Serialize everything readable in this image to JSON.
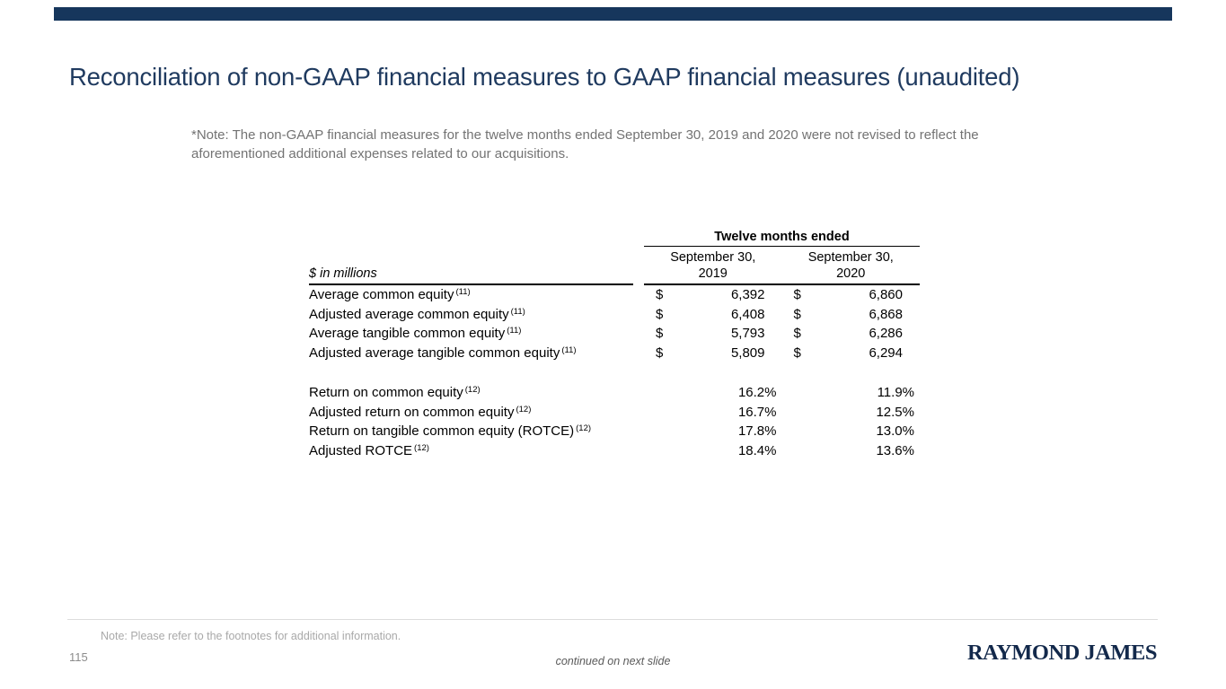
{
  "slide": {
    "title": "Reconciliation of non-GAAP financial measures to GAAP financial measures (unaudited)",
    "note": "*Note: The non-GAAP financial measures for the twelve months ended September 30, 2019 and 2020 were not revised to reflect the aforementioned additional expenses related to our acquisitions.",
    "footnote": "Note: Please refer to the footnotes for additional information.",
    "page_number": "115",
    "continued": "continued on next slide",
    "logo_text": "RAYMOND JAMES"
  },
  "colors": {
    "brand_navy_bar": "#16365C",
    "title_navy": "#1F3A5F",
    "logo_navy": "#13294B",
    "note_gray": "#737373",
    "footnote_gray": "#A9A9A9",
    "divider_gray": "#DDDDDD"
  },
  "table": {
    "units_label": "$ in millions",
    "span_header": "Twelve months ended",
    "col_headers": [
      {
        "line1": "September 30,",
        "line2": "2019"
      },
      {
        "line1": "September 30,",
        "line2": "2020"
      }
    ],
    "rows": [
      {
        "label": "Average common equity",
        "sup": "(11)",
        "currency": "$",
        "y2019": "6,392",
        "y2020": "6,860"
      },
      {
        "label": "Adjusted average common equity",
        "sup": "(11)",
        "currency": "$",
        "y2019": "6,408",
        "y2020": "6,868"
      },
      {
        "label": "Average tangible common equity",
        "sup": "(11)",
        "currency": "$",
        "y2019": "5,793",
        "y2020": "6,286"
      },
      {
        "label": "Adjusted average tangible common equity",
        "sup": "(11)",
        "currency": "$",
        "y2019": "5,809",
        "y2020": "6,294"
      }
    ],
    "percent_rows": [
      {
        "label": "Return on common equity",
        "sup": "(12)",
        "y2019": "16.2%",
        "y2020": "11.9%"
      },
      {
        "label": "Adjusted return on common equity",
        "sup": "(12)",
        "y2019": "16.7%",
        "y2020": "12.5%"
      },
      {
        "label": "Return on tangible common equity (ROTCE)",
        "sup": "(12)",
        "y2019": "17.8%",
        "y2020": "13.0%"
      },
      {
        "label": "Adjusted ROTCE",
        "sup": "(12)",
        "y2019": "18.4%",
        "y2020": "13.6%"
      }
    ]
  }
}
